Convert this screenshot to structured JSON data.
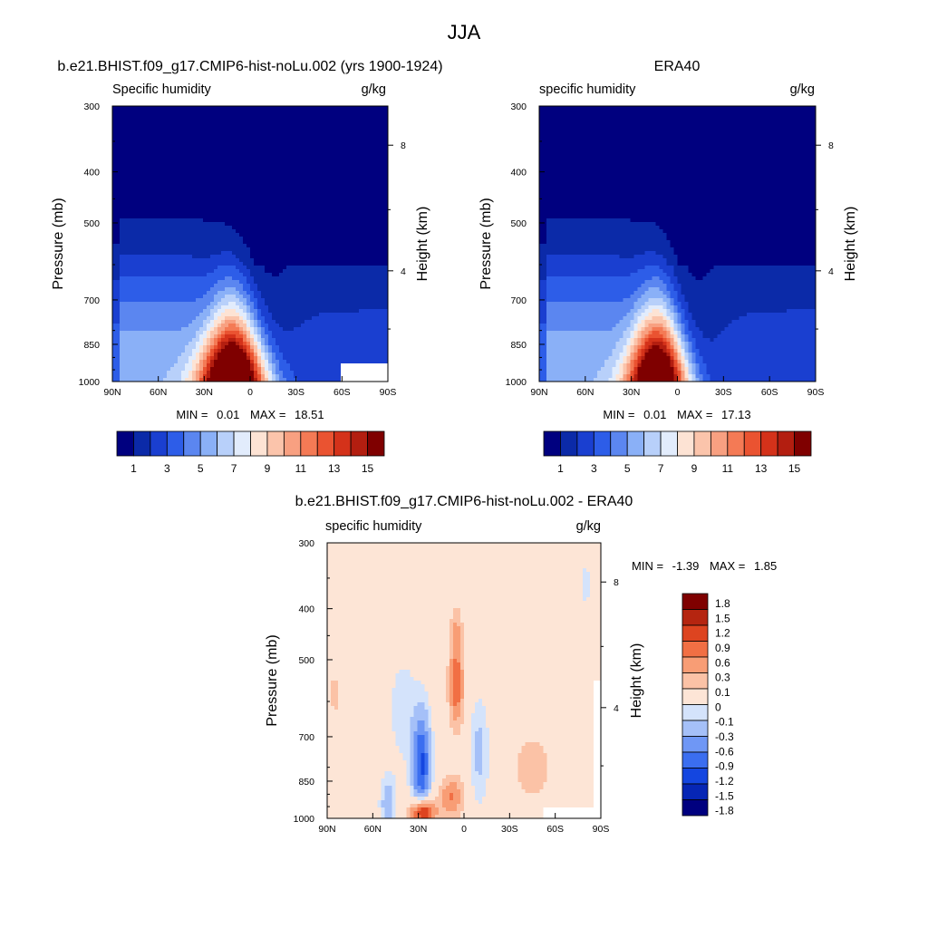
{
  "figure": {
    "title": "JJA"
  },
  "colors": {
    "sequential": [
      "#00007f",
      "#0b2aa8",
      "#1a3fd0",
      "#2d5de8",
      "#5b86f0",
      "#8ab0f7",
      "#b8d0fa",
      "#e2ecfc",
      "#fde3d4",
      "#fbc4ab",
      "#f8a081",
      "#f47a55",
      "#ea5331",
      "#d4321a",
      "#b31e10",
      "#7f0000"
    ],
    "diverging": [
      "#00007f",
      "#0626b5",
      "#1446e0",
      "#3b6ef0",
      "#6f97f5",
      "#a5c0f8",
      "#d4e3fb",
      "#fde5d6",
      "#fbc2a6",
      "#f89d75",
      "#f16f44",
      "#dd4420",
      "#b52510",
      "#7f0000"
    ]
  },
  "chart_data": [
    {
      "type": "heatmap",
      "title": "b.e21.BHIST.f09_g17.CMIP6-hist-noLu.002 (yrs 1900-1924)",
      "subtitle_left": "Specific humidity",
      "units": "g/kg",
      "ylabel": "Pressure (mb)",
      "ylabel_right": "Height (km)",
      "x_ticks": [
        "90N",
        "60N",
        "30N",
        "0",
        "30S",
        "60S",
        "90S"
      ],
      "y_ticks": [
        "300",
        "400",
        "500",
        "700",
        "850",
        "1000"
      ],
      "y_right_ticks": [
        "8",
        "4"
      ],
      "stats": {
        "min_label": "MIN =",
        "min": "0.01",
        "max_label": "MAX =",
        "max": "18.51"
      },
      "colorbar": {
        "levels": 16,
        "labels": [
          "1",
          "3",
          "5",
          "7",
          "9",
          "11",
          "13",
          "15"
        ]
      },
      "field": {
        "peak_g_per_kg": 18.51,
        "peak_lat": 10,
        "peak_p": 1000,
        "bottom_spread_deg": 22,
        "top_spread_deg": 8,
        "top_p": 340,
        "nh_floor": 0.3,
        "nh_floor_lat": 70,
        "sh_floor": 0.2,
        "sh_floor_lat": -40
      },
      "missing": [
        {
          "lat_from": -60,
          "lat_to": -90,
          "p_from": 930,
          "p_to": 1000
        }
      ]
    },
    {
      "type": "heatmap",
      "title": "ERA40",
      "subtitle_left": "specific humidity",
      "units": "g/kg",
      "ylabel": "Pressure (mb)",
      "ylabel_right": "Height (km)",
      "x_ticks": [
        "90N",
        "60N",
        "30N",
        "0",
        "30S",
        "60S",
        "90S"
      ],
      "y_ticks": [
        "300",
        "400",
        "500",
        "700",
        "850",
        "1000"
      ],
      "y_right_ticks": [
        "8",
        "4"
      ],
      "stats": {
        "min_label": "MIN =",
        "min": "0.01",
        "max_label": "MAX =",
        "max": "17.13"
      },
      "colorbar": {
        "levels": 16,
        "labels": [
          "1",
          "3",
          "5",
          "7",
          "9",
          "11",
          "13",
          "15"
        ]
      },
      "field": {
        "peak_g_per_kg": 17.13,
        "peak_lat": 12,
        "peak_p": 1000,
        "bottom_spread_deg": 20,
        "top_spread_deg": 8,
        "top_p": 345,
        "nh_floor": 0.3,
        "nh_floor_lat": 70,
        "sh_floor": 0.2,
        "sh_floor_lat": -40
      },
      "missing": []
    },
    {
      "type": "heatmap",
      "title": "b.e21.BHIST.f09_g17.CMIP6-hist-noLu.002 - ERA40",
      "subtitle_left": "specific humidity",
      "units": "g/kg",
      "ylabel": "Pressure (mb)",
      "ylabel_right": "Height (km)",
      "x_ticks": [
        "90N",
        "60N",
        "30N",
        "0",
        "30S",
        "60S",
        "90S"
      ],
      "y_ticks": [
        "300",
        "400",
        "500",
        "700",
        "850",
        "1000"
      ],
      "y_right_ticks": [
        "8",
        "4"
      ],
      "stats": {
        "min_label": "MIN =",
        "min": "-1.39",
        "max_label": "MAX =",
        "max": "1.85"
      },
      "colorbar": {
        "levels": 14,
        "labels": [
          "1.8",
          "1.5",
          "1.2",
          "0.9",
          "0.6",
          "0.3",
          "0.1",
          "0",
          "-0.1",
          "-0.3",
          "-0.6",
          "-0.9",
          "-1.2",
          "-1.5",
          "-1.8"
        ]
      },
      "features": [
        {
          "lat": 28,
          "p": 790,
          "dlat": 6,
          "dlogp": 0.22,
          "amp": -1.3
        },
        {
          "lat": 5,
          "p": 560,
          "dlat": 5,
          "dlogp": 0.18,
          "amp": 1.1
        },
        {
          "lat": 5,
          "p": 440,
          "dlat": 4,
          "dlogp": 0.12,
          "amp": 0.5
        },
        {
          "lat": 27,
          "p": 975,
          "dlat": 8,
          "dlogp": 0.06,
          "amp": 1.85
        },
        {
          "lat": 8,
          "p": 910,
          "dlat": 8,
          "dlogp": 0.09,
          "amp": 0.9
        },
        {
          "lat": -10,
          "p": 750,
          "dlat": 6,
          "dlogp": 0.22,
          "amp": -0.45
        },
        {
          "lat": 50,
          "p": 940,
          "dlat": 5,
          "dlogp": 0.12,
          "amp": -0.55
        },
        {
          "lat": -45,
          "p": 800,
          "dlat": 15,
          "dlogp": 0.17,
          "amp": 0.4
        },
        {
          "lat": 85,
          "p": 580,
          "dlat": 6,
          "dlogp": 0.16,
          "amp": 0.3
        },
        {
          "lat": 40,
          "p": 620,
          "dlat": 10,
          "dlogp": 0.25,
          "amp": -0.25
        },
        {
          "lat": -5,
          "p": 360,
          "dlat": 3,
          "dlogp": 0.15,
          "amp": -0.15
        },
        {
          "lat": -80,
          "p": 360,
          "dlat": 4,
          "dlogp": 0.15,
          "amp": -0.2
        }
      ],
      "background": 0.05,
      "missing": [
        {
          "lat_from": -52,
          "lat_to": -90,
          "p_from": 950,
          "p_to": 1000
        },
        {
          "lat_from": -86,
          "lat_to": -90,
          "p_from": 548,
          "p_to": 1000
        }
      ]
    }
  ]
}
